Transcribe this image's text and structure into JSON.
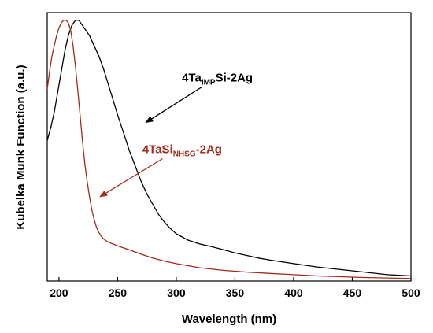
{
  "chart_data": {
    "type": "line",
    "xlabel": "Wavelength (nm)",
    "ylabel": "Kubelka Munk Function (a.u.)",
    "xlim": [
      190,
      500
    ],
    "ylim": [
      0,
      1.05
    ],
    "x_ticks": [
      "200",
      "250",
      "300",
      "350",
      "400",
      "450",
      "500"
    ],
    "y_ticks_shown": false,
    "grid": false,
    "series": [
      {
        "name_main": "4Ta",
        "name_sub": "IMP",
        "name_rest": "Si-2Ag",
        "color": "#000000",
        "x": [
          190,
          193,
          196,
          199,
          202,
          205,
          208,
          211,
          214,
          217,
          220,
          223,
          226,
          230,
          234,
          238,
          242,
          246,
          250,
          255,
          260,
          265,
          270,
          275,
          280,
          285,
          290,
          295,
          300,
          310,
          320,
          330,
          340,
          350,
          360,
          370,
          380,
          390,
          400,
          420,
          440,
          460,
          480,
          500
        ],
        "y": [
          0.55,
          0.6,
          0.66,
          0.74,
          0.82,
          0.9,
          0.96,
          1.0,
          1.02,
          1.02,
          1.0,
          0.98,
          0.96,
          0.92,
          0.88,
          0.83,
          0.77,
          0.71,
          0.65,
          0.58,
          0.51,
          0.45,
          0.39,
          0.34,
          0.3,
          0.26,
          0.23,
          0.205,
          0.185,
          0.16,
          0.145,
          0.135,
          0.123,
          0.11,
          0.1,
          0.09,
          0.082,
          0.075,
          0.068,
          0.055,
          0.045,
          0.035,
          0.025,
          0.02
        ]
      },
      {
        "name_main": "4TaSi",
        "name_sub": "NHSG",
        "name_rest": "-2Ag",
        "color": "#a52a1a",
        "x": [
          190,
          192,
          194,
          196,
          198,
          200,
          202,
          204,
          206,
          208,
          210,
          212,
          214,
          216,
          218,
          220,
          222,
          224,
          226,
          228,
          230,
          232,
          234,
          236,
          238,
          240,
          243,
          246,
          250,
          260,
          270,
          280,
          290,
          300,
          320,
          340,
          360,
          380,
          400,
          420,
          440,
          460,
          480,
          500
        ],
        "y": [
          0.75,
          0.82,
          0.88,
          0.92,
          0.96,
          0.99,
          1.01,
          1.02,
          1.02,
          1.01,
          0.98,
          0.92,
          0.84,
          0.75,
          0.65,
          0.55,
          0.46,
          0.39,
          0.33,
          0.28,
          0.24,
          0.21,
          0.19,
          0.175,
          0.165,
          0.158,
          0.15,
          0.145,
          0.138,
          0.122,
          0.105,
          0.09,
          0.078,
          0.068,
          0.052,
          0.042,
          0.035,
          0.03,
          0.025,
          0.02,
          0.017,
          0.014,
          0.012,
          0.01
        ]
      }
    ],
    "annotations": [
      {
        "series": 0,
        "text_x": 335,
        "text_y": 0.78,
        "arrow_to_x": 274,
        "arrow_to_y": 0.62
      },
      {
        "series": 1,
        "text_x": 305,
        "text_y": 0.5,
        "arrow_to_x": 235,
        "arrow_to_y": 0.33
      }
    ]
  }
}
